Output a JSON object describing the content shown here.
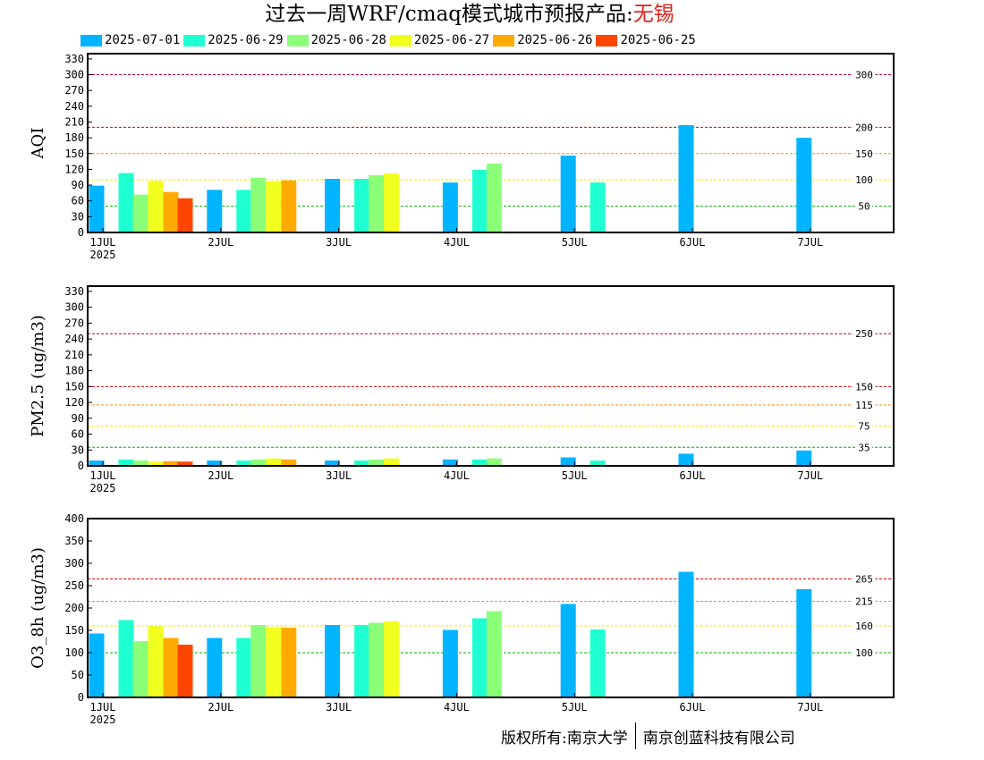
{
  "title": {
    "prefix": "过去一周WRF/cmaq模式城市预报产品:",
    "city": "无锡"
  },
  "legend": [
    {
      "label": "2025-07-01",
      "color": "#00b4ff"
    },
    {
      "label": "2025-06-29",
      "color": "#1effd2"
    },
    {
      "label": "2025-06-28",
      "color": "#8cff78"
    },
    {
      "label": "2025-06-27",
      "color": "#f0ff1e"
    },
    {
      "label": "2025-06-26",
      "color": "#ffaa00"
    },
    {
      "label": "2025-06-25",
      "color": "#ff4600"
    }
  ],
  "copyright": {
    "left": "版权所有:南京大学",
    "right": "南京创蓝科技有限公司"
  },
  "chart_data": [
    {
      "type": "bar",
      "ylabel": "AQI",
      "ylim": [
        0,
        340
      ],
      "yticks": [
        0,
        30,
        60,
        90,
        120,
        150,
        180,
        210,
        240,
        270,
        300,
        330
      ],
      "categories": [
        "1JUL",
        "2JUL",
        "3JUL",
        "4JUL",
        "5JUL",
        "6JUL",
        "7JUL"
      ],
      "year_label": "2025",
      "thresholds": [
        {
          "value": 300,
          "label": "300",
          "color": "#b4003c"
        },
        {
          "value": 200,
          "label": "200",
          "color": "#e00000"
        },
        {
          "value": 150,
          "label": "150",
          "color": "#ff8c00"
        },
        {
          "value": 100,
          "label": "100",
          "color": "#ffe600"
        },
        {
          "value": 50,
          "label": "50",
          "color": "#00b400"
        }
      ],
      "series": [
        {
          "values": [
            89,
            81,
            102,
            95,
            146,
            204,
            180
          ]
        },
        {
          "values": [
            113,
            81,
            102,
            119,
            95,
            null,
            null
          ]
        },
        {
          "values": [
            72,
            104,
            109,
            131,
            null,
            null,
            null
          ]
        },
        {
          "values": [
            98,
            97,
            112,
            null,
            null,
            null,
            null
          ]
        },
        {
          "values": [
            77,
            99,
            null,
            null,
            null,
            null,
            null
          ]
        },
        {
          "values": [
            65,
            null,
            null,
            null,
            null,
            null,
            null
          ]
        }
      ]
    },
    {
      "type": "bar",
      "ylabel": "PM2.5 (ug/m3)",
      "ylim": [
        0,
        340
      ],
      "yticks": [
        0,
        30,
        60,
        90,
        120,
        150,
        180,
        210,
        240,
        270,
        300,
        330
      ],
      "categories": [
        "1JUL",
        "2JUL",
        "3JUL",
        "4JUL",
        "5JUL",
        "6JUL",
        "7JUL"
      ],
      "year_label": "2025",
      "thresholds": [
        {
          "value": 250,
          "label": "250",
          "color": "#b4003c"
        },
        {
          "value": 150,
          "label": "150",
          "color": "#e00000"
        },
        {
          "value": 115,
          "label": "115",
          "color": "#ff8c00"
        },
        {
          "value": 75,
          "label": "75",
          "color": "#ffe600"
        },
        {
          "value": 35,
          "label": "35",
          "color": "#00b400"
        }
      ],
      "series": [
        {
          "values": [
            10,
            10,
            10,
            12,
            16,
            23,
            29
          ]
        },
        {
          "values": [
            12,
            10,
            10,
            12,
            10,
            null,
            null
          ]
        },
        {
          "values": [
            10,
            12,
            12,
            14,
            null,
            null,
            null
          ]
        },
        {
          "values": [
            8,
            14,
            14,
            null,
            null,
            null,
            null
          ]
        },
        {
          "values": [
            9,
            12,
            null,
            null,
            null,
            null,
            null
          ]
        },
        {
          "values": [
            8,
            null,
            null,
            null,
            null,
            null,
            null
          ]
        }
      ]
    },
    {
      "type": "bar",
      "ylabel": "O3_8h (ug/m3)",
      "ylim": [
        0,
        400
      ],
      "yticks": [
        0,
        50,
        100,
        150,
        200,
        250,
        300,
        350,
        400
      ],
      "categories": [
        "1JUL",
        "2JUL",
        "3JUL",
        "4JUL",
        "5JUL",
        "6JUL",
        "7JUL"
      ],
      "year_label": "2025",
      "thresholds": [
        {
          "value": 265,
          "label": "265",
          "color": "#e00000"
        },
        {
          "value": 215,
          "label": "215",
          "color": "#ff8c00"
        },
        {
          "value": 160,
          "label": "160",
          "color": "#ffe600"
        },
        {
          "value": 100,
          "label": "100",
          "color": "#00b400"
        }
      ],
      "series": [
        {
          "values": [
            143,
            133,
            162,
            151,
            209,
            281,
            242
          ]
        },
        {
          "values": [
            173,
            133,
            162,
            177,
            152,
            null,
            null
          ]
        },
        {
          "values": [
            126,
            162,
            167,
            193,
            null,
            null,
            null
          ]
        },
        {
          "values": [
            159,
            157,
            170,
            null,
            null,
            null,
            null
          ]
        },
        {
          "values": [
            133,
            156,
            null,
            null,
            null,
            null,
            null
          ]
        },
        {
          "values": [
            118,
            null,
            null,
            null,
            null,
            null,
            null
          ]
        }
      ]
    }
  ]
}
